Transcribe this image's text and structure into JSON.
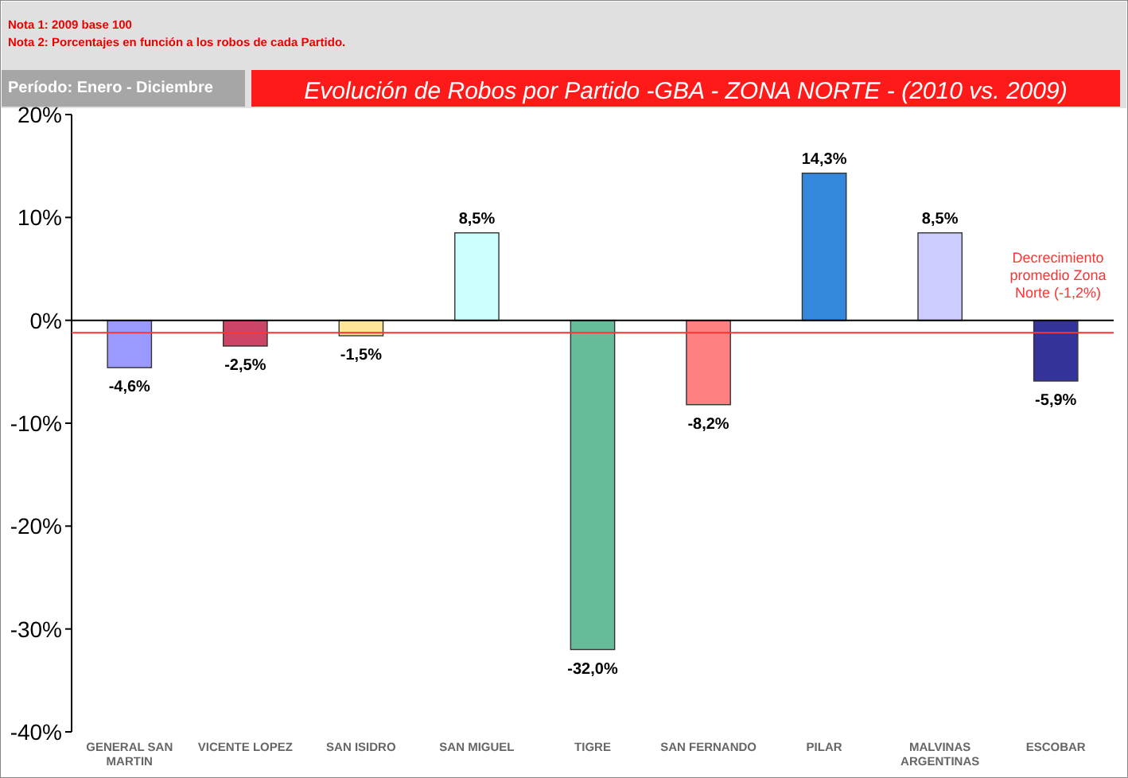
{
  "chart_data": {
    "type": "bar",
    "title": "Evolución de Robos por Partido -GBA - ZONA NORTE - (2010 vs. 2009)",
    "subtitle": "Período: Enero  - Diciembre",
    "annotations": [
      "Nota 1: 2009 base 100",
      "Nota 2: Porcentajes en función a los robos de cada Partido."
    ],
    "categories": [
      "GENERAL SAN MARTIN",
      "VICENTE LOPEZ",
      "SAN ISIDRO",
      "SAN MIGUEL",
      "TIGRE",
      "SAN FERNANDO",
      "PILAR",
      "MALVINAS ARGENTINAS",
      "ESCOBAR"
    ],
    "values": [
      -4.6,
      -2.5,
      -1.5,
      8.5,
      -32.0,
      -8.2,
      14.3,
      8.5,
      -5.9
    ],
    "value_labels": [
      "-4,6%",
      "-2,5%",
      "-1,5%",
      "8,5%",
      "-32,0%",
      "-8,2%",
      "14,3%",
      "8,5%",
      "-5,9%"
    ],
    "colors": [
      "#9999ff",
      "#cc4466",
      "#ffe699",
      "#ccffff",
      "#66bb99",
      "#ff8080",
      "#3388dd",
      "#ccccff",
      "#333399"
    ],
    "ylim": [
      -40,
      20
    ],
    "yticks": [
      {
        "value": -40,
        "label": "-40%"
      },
      {
        "value": -30,
        "label": "-30%"
      },
      {
        "value": -20,
        "label": "-20%"
      },
      {
        "value": -10,
        "label": "-10%"
      },
      {
        "value": 0,
        "label": "0%"
      },
      {
        "value": 10,
        "label": "10%"
      },
      {
        "value": 20,
        "label": "20%"
      }
    ],
    "ref_lines": [
      {
        "axis": "y",
        "value": -1.2,
        "label": "Decrecimiento promedio Zona Norte (-1,2%)",
        "color": "#ff3333"
      }
    ]
  }
}
